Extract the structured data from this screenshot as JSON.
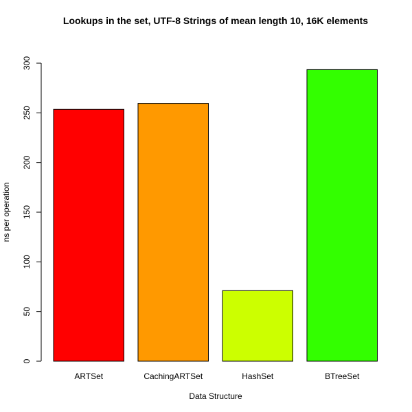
{
  "chart_data": {
    "type": "bar",
    "title": "Lookups in the set, UTF-8 Strings of mean length 10, 16K elements",
    "xlabel": "Data Structure",
    "ylabel": "ns per operation",
    "categories": [
      "ARTSet",
      "CachingARTSet",
      "HashSet",
      "BTreeSet"
    ],
    "values": [
      253.5,
      259.5,
      71,
      293.5
    ],
    "colors": [
      "#ff0000",
      "#ff9900",
      "#ccff00",
      "#33ff00"
    ],
    "ylim": [
      0,
      300
    ],
    "yticks": [
      0,
      50,
      100,
      150,
      200,
      250,
      300
    ],
    "grid": false,
    "legend": "none"
  }
}
